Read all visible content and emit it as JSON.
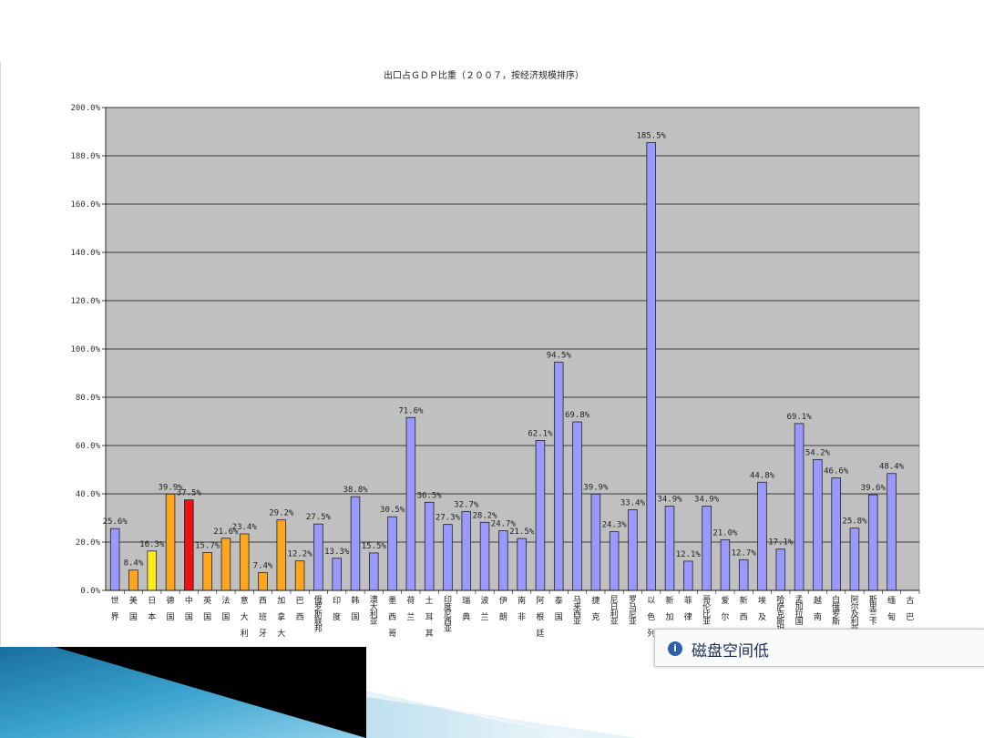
{
  "chart_data": {
    "type": "bar",
    "title": "出口占ＧＤＰ比重（２００７，按经济规模排序）",
    "xlabel": "",
    "ylabel": "",
    "ylim": [
      0,
      200
    ],
    "yticks": [
      "0.0%",
      "20.0%",
      "40.0%",
      "60.0%",
      "80.0%",
      "100.0%",
      "120.0%",
      "140.0%",
      "160.0%",
      "180.0%",
      "200.0%"
    ],
    "grid": true,
    "legend": "none",
    "plot_background": "#c0c0c0",
    "categories": [
      "世界",
      "美国",
      "日本",
      "德国",
      "中国",
      "英国",
      "法国",
      "意大利",
      "西班牙",
      "加拿大",
      "巴西",
      "俄罗斯联邦",
      "印度",
      "韩国",
      "澳大利亚",
      "墨西哥",
      "荷兰",
      "土耳其",
      "印度尼西亚",
      "瑞典",
      "波兰",
      "伊朗",
      "南非",
      "阿根廷",
      "泰国",
      "马来西亚",
      "捷克",
      "尼日利亚",
      "罗马尼亚",
      "以色列",
      "新加坡",
      "菲律宾",
      "哥伦比亚",
      "爱尔兰",
      "新西兰",
      "埃及",
      "哈萨克斯坦",
      "孟加拉国",
      "越南",
      "白俄罗斯",
      "阿尔及利亚",
      "斯里兰卡",
      "缅甸",
      "古巴"
    ],
    "values": [
      25.6,
      8.4,
      16.3,
      39.9,
      37.5,
      15.7,
      21.6,
      23.4,
      7.4,
      29.2,
      12.2,
      27.5,
      13.3,
      38.8,
      15.5,
      30.5,
      71.6,
      36.5,
      27.3,
      32.7,
      28.2,
      24.7,
      21.5,
      62.1,
      94.5,
      69.8,
      39.9,
      24.3,
      33.4,
      185.5,
      34.9,
      12.1,
      34.9,
      21.0,
      12.7,
      44.8,
      17.1,
      69.1,
      54.2,
      46.6,
      25.8,
      39.6,
      48.4,
      0
    ],
    "labels": [
      "25.6%",
      "8.4%",
      "16.3%",
      "39.9%",
      "37.5%",
      "15.7%",
      "21.6%",
      "23.4%",
      "7.4%",
      "29.2%",
      "12.2%",
      "27.5%",
      "13.3%",
      "38.8%",
      "15.5%",
      "30.5%",
      "71.6%",
      "36.5%",
      "27.3%",
      "32.7%",
      "28.2%",
      "24.7%",
      "21.5%",
      "62.1%",
      "94.5%",
      "69.8%",
      "39.9%",
      "24.3%",
      "33.4%",
      "185.5%",
      "34.9%",
      "12.1%",
      "34.9%",
      "21.0%",
      "12.7%",
      "44.8%",
      "17.1%",
      "69.1%",
      "54.2%",
      "46.6%",
      "25.8%",
      "39.6%",
      "48.4%",
      ""
    ],
    "bar_colors": [
      "#9999ff",
      "#ffa520",
      "#ffeb1a",
      "#ffa520",
      "#ee1111",
      "#ffa520",
      "#ffa520",
      "#ffa520",
      "#ffa520",
      "#ffa520",
      "#ffa520",
      "#9999ff",
      "#9999ff",
      "#9999ff",
      "#9999ff",
      "#9999ff",
      "#9999ff",
      "#9999ff",
      "#9999ff",
      "#9999ff",
      "#9999ff",
      "#9999ff",
      "#9999ff",
      "#9999ff",
      "#9999ff",
      "#9999ff",
      "#9999ff",
      "#9999ff",
      "#9999ff",
      "#9999ff",
      "#9999ff",
      "#9999ff",
      "#9999ff",
      "#9999ff",
      "#9999ff",
      "#9999ff",
      "#9999ff",
      "#9999ff",
      "#9999ff",
      "#9999ff",
      "#9999ff",
      "#9999ff",
      "#9999ff",
      "#9999ff"
    ]
  },
  "popup": {
    "icon": "info-icon",
    "text": "磁盘空间低"
  },
  "decoration": {
    "color_dark": "#000000",
    "color_blue": "#2f8fbf",
    "color_light": "#d9ecf5"
  }
}
